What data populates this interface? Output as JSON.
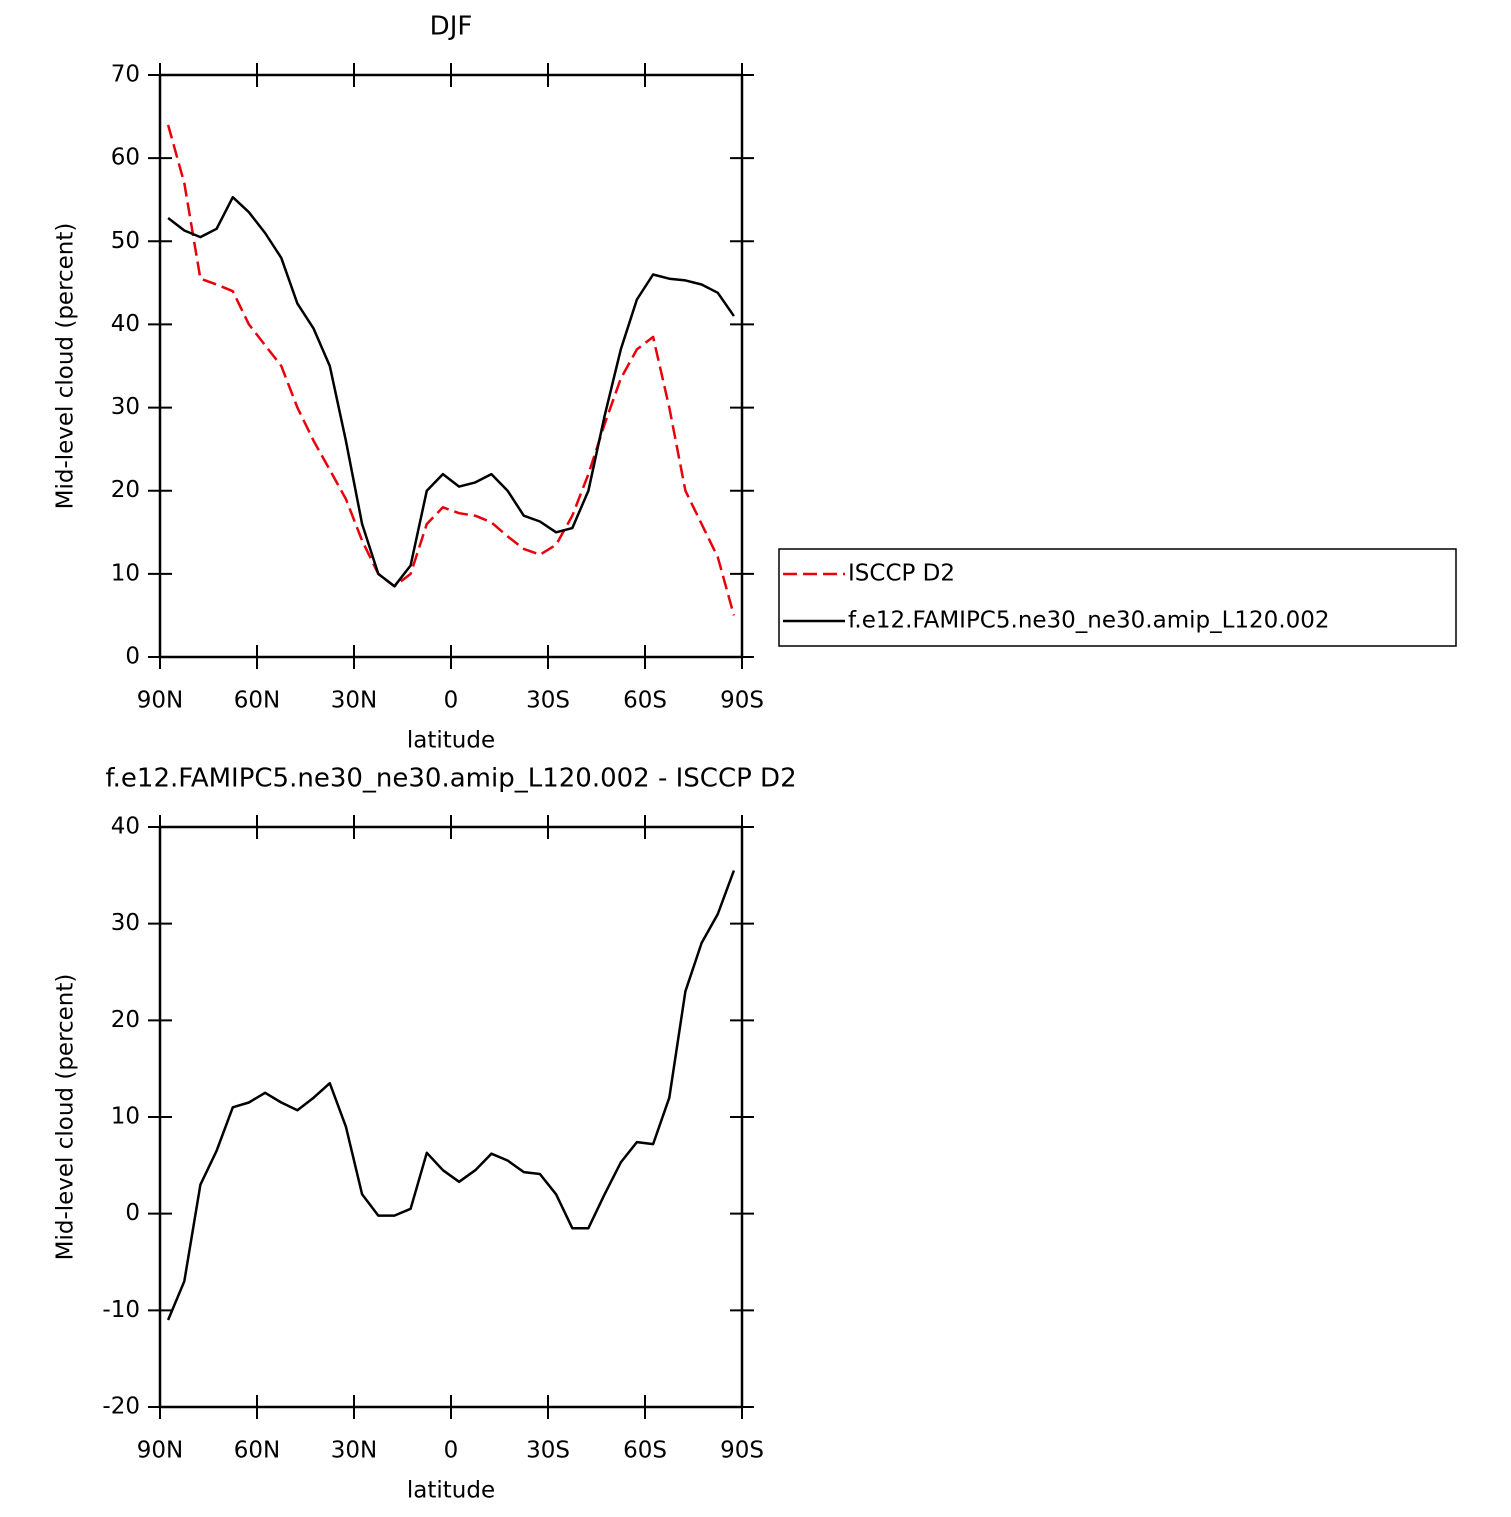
{
  "chart_data": [
    {
      "type": "line",
      "title": "DJF",
      "x_label": "latitude",
      "y_label": "Mid-level cloud (percent)",
      "x": [
        87.5,
        82.5,
        77.5,
        72.5,
        67.5,
        62.5,
        57.5,
        52.5,
        47.5,
        42.5,
        37.5,
        32.5,
        27.5,
        22.5,
        17.5,
        12.5,
        7.5,
        2.5,
        -2.5,
        -7.5,
        -12.5,
        -17.5,
        -22.5,
        -27.5,
        -32.5,
        -37.5,
        -42.5,
        -47.5,
        -52.5,
        -57.5,
        -62.5,
        -67.5,
        -72.5,
        -77.5,
        -82.5,
        -87.5
      ],
      "series": [
        {
          "name": "ISCCP D2",
          "color": "#e8000b",
          "style": "dashed",
          "values": [
            64,
            57,
            45.5,
            44.8,
            44,
            40,
            37.5,
            35,
            30,
            26,
            22.5,
            19,
            14,
            10,
            8.5,
            10,
            16,
            18,
            17.3,
            17,
            16.2,
            14.5,
            13,
            12.3,
            13.5,
            17,
            22,
            28,
            33.5,
            37,
            38.5,
            30,
            20,
            16,
            12,
            5
          ]
        },
        {
          "name": "f.e12.FAMIPC5.ne30_ne30.amip_L120.002",
          "color": "#000000",
          "style": "solid",
          "values": [
            52.8,
            51.3,
            50.5,
            51.5,
            55.3,
            53.5,
            51,
            48,
            42.5,
            39.5,
            35,
            26,
            16,
            10,
            8.5,
            11,
            20,
            22,
            20.5,
            21,
            22,
            20,
            17,
            16.3,
            15,
            15.5,
            20,
            29,
            37,
            43,
            46,
            45.5,
            45.3,
            44.8,
            43.8,
            41
          ]
        }
      ],
      "xlim": [
        90,
        -90
      ],
      "xticks": [
        {
          "value": 90,
          "label": "90N"
        },
        {
          "value": 60,
          "label": "60N"
        },
        {
          "value": 30,
          "label": "30N"
        },
        0,
        {
          "value": -30,
          "label": "30S"
        },
        {
          "value": -60,
          "label": "60S"
        },
        {
          "value": -90,
          "label": "90S"
        }
      ],
      "ylim": [
        0,
        70
      ],
      "yticks": [
        0,
        10,
        20,
        30,
        40,
        50,
        60,
        70
      ],
      "grid": false,
      "legend": "right"
    },
    {
      "type": "line",
      "title": "f.e12.FAMIPC5.ne30_ne30.amip_L120.002 - ISCCP D2",
      "x_label": "latitude",
      "y_label": "Mid-level cloud (percent)",
      "x": [
        87.5,
        82.5,
        77.5,
        72.5,
        67.5,
        62.5,
        57.5,
        52.5,
        47.5,
        42.5,
        37.5,
        32.5,
        27.5,
        22.5,
        17.5,
        12.5,
        7.5,
        2.5,
        -2.5,
        -7.5,
        -12.5,
        -17.5,
        -22.5,
        -27.5,
        -32.5,
        -37.5,
        -42.5,
        -47.5,
        -52.5,
        -57.5,
        -62.5,
        -67.5,
        -72.5,
        -77.5,
        -82.5,
        -87.5
      ],
      "values": [
        -11,
        -7,
        3,
        6.5,
        11,
        11.5,
        12.5,
        11.5,
        10.7,
        12,
        13.5,
        9,
        2,
        -0.2,
        -0.2,
        0.5,
        6.3,
        4.5,
        3.3,
        4.5,
        6.2,
        5.5,
        4.3,
        4.1,
        2,
        -1.5,
        -1.5,
        2,
        5.3,
        7.4,
        7.2,
        12,
        23,
        28,
        31,
        35.5
      ],
      "color": "#000000",
      "xlim": [
        90,
        -90
      ],
      "xticks": [
        {
          "value": 90,
          "label": "90N"
        },
        {
          "value": 60,
          "label": "60N"
        },
        {
          "value": 30,
          "label": "30N"
        },
        0,
        {
          "value": -30,
          "label": "30S"
        },
        {
          "value": -60,
          "label": "60S"
        },
        {
          "value": -90,
          "label": "90S"
        }
      ],
      "ylim": [
        -20,
        40
      ],
      "yticks": [
        -20,
        -10,
        0,
        10,
        20,
        30,
        40
      ],
      "grid": false
    }
  ]
}
